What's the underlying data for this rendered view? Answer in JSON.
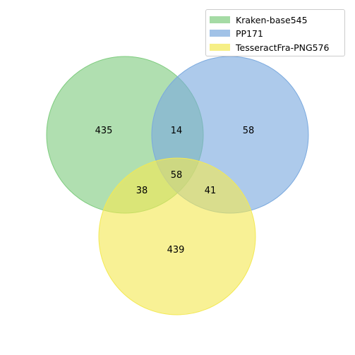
{
  "chart_data": {
    "type": "venn",
    "sets": [
      {
        "name": "Kraken-base545",
        "color": "#7fcc7f"
      },
      {
        "name": "PP171",
        "color": "#7aa9de"
      },
      {
        "name": "TesseractFra-PNG576",
        "color": "#f3e954"
      }
    ],
    "regions": {
      "A_only": 435,
      "B_only": 58,
      "C_only": 439,
      "AB_only": 14,
      "AC_only": 38,
      "BC_only": 41,
      "ABC": 58
    },
    "legend_position": "top-right"
  }
}
